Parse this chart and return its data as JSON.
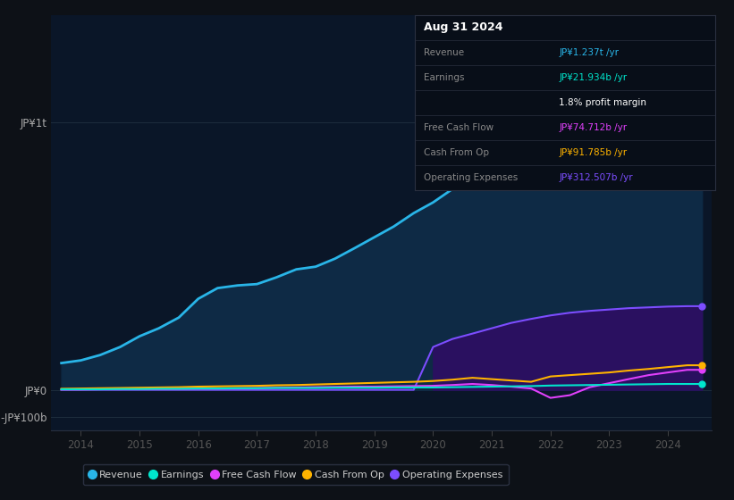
{
  "background_color": "#0d1117",
  "plot_bg_color": "#0a1628",
  "years": [
    2013.67,
    2014.0,
    2014.33,
    2014.67,
    2015.0,
    2015.33,
    2015.67,
    2016.0,
    2016.33,
    2016.67,
    2017.0,
    2017.33,
    2017.67,
    2018.0,
    2018.33,
    2018.67,
    2019.0,
    2019.33,
    2019.67,
    2020.0,
    2020.33,
    2020.67,
    2021.0,
    2021.33,
    2021.67,
    2022.0,
    2022.33,
    2022.67,
    2023.0,
    2023.33,
    2023.67,
    2024.0,
    2024.33,
    2024.58
  ],
  "revenue": [
    100,
    110,
    130,
    160,
    200,
    230,
    270,
    340,
    380,
    390,
    395,
    420,
    450,
    460,
    490,
    530,
    570,
    610,
    660,
    700,
    750,
    800,
    850,
    900,
    960,
    1010,
    1060,
    1100,
    1140,
    1170,
    1195,
    1220,
    1237,
    1237
  ],
  "earnings": [
    2,
    2,
    2,
    3,
    3,
    4,
    4,
    5,
    5,
    6,
    6,
    7,
    7,
    7,
    8,
    8,
    8,
    9,
    9,
    9,
    10,
    11,
    12,
    13,
    14,
    16,
    17,
    18,
    19,
    20,
    21,
    22,
    21.934,
    21.934
  ],
  "free_cash_flow": [
    1,
    1,
    2,
    2,
    3,
    3,
    4,
    5,
    5,
    6,
    7,
    8,
    9,
    10,
    11,
    12,
    12,
    13,
    14,
    15,
    18,
    22,
    18,
    12,
    5,
    -30,
    -20,
    10,
    25,
    40,
    55,
    65,
    74.712,
    74.712
  ],
  "cash_from_op": [
    4,
    5,
    6,
    7,
    8,
    9,
    10,
    12,
    13,
    14,
    15,
    17,
    18,
    20,
    22,
    24,
    26,
    28,
    30,
    33,
    38,
    45,
    40,
    35,
    30,
    50,
    55,
    60,
    65,
    72,
    78,
    85,
    91.785,
    91.785
  ],
  "operating_expenses": [
    0,
    0,
    0,
    0,
    0,
    0,
    0,
    0,
    0,
    0,
    0,
    0,
    0,
    0,
    0,
    0,
    0,
    0,
    0,
    160,
    190,
    210,
    230,
    250,
    265,
    278,
    288,
    295,
    300,
    305,
    308,
    311,
    312.507,
    312.507
  ],
  "revenue_color": "#29b5e8",
  "earnings_color": "#00e5cc",
  "free_cash_flow_color": "#e040fb",
  "cash_from_op_color": "#ffb300",
  "operating_expenses_color": "#7c4dff",
  "revenue_fill_color": "#0e2a45",
  "operating_expenses_fill_color": "#2a1060",
  "ylim_min": -150,
  "ylim_max": 1400,
  "xlim_min": 2013.5,
  "xlim_max": 2024.75,
  "ytick_labels": [
    "JP¥1t",
    "JP¥0",
    "-JP¥100b"
  ],
  "ytick_values": [
    1000,
    0,
    -100
  ],
  "xtick_labels": [
    "2014",
    "2015",
    "2016",
    "2017",
    "2018",
    "2019",
    "2020",
    "2021",
    "2022",
    "2023",
    "2024"
  ],
  "xtick_values": [
    2014,
    2015,
    2016,
    2017,
    2018,
    2019,
    2020,
    2021,
    2022,
    2023,
    2024
  ],
  "legend_labels": [
    "Revenue",
    "Earnings",
    "Free Cash Flow",
    "Cash From Op",
    "Operating Expenses"
  ],
  "legend_colors": [
    "#29b5e8",
    "#00e5cc",
    "#e040fb",
    "#ffb300",
    "#7c4dff"
  ],
  "info_box": {
    "title": "Aug 31 2024",
    "rows": [
      {
        "label": "Revenue",
        "value": "JP¥1.237t /yr",
        "value_color": "#29b5e8",
        "label_color": "#888888"
      },
      {
        "label": "Earnings",
        "value": "JP¥21.934b /yr",
        "value_color": "#00e5cc",
        "label_color": "#888888"
      },
      {
        "label": "",
        "value": "1.8% profit margin",
        "value_color": "#ffffff",
        "label_color": "#888888"
      },
      {
        "label": "Free Cash Flow",
        "value": "JP¥74.712b /yr",
        "value_color": "#e040fb",
        "label_color": "#888888"
      },
      {
        "label": "Cash From Op",
        "value": "JP¥91.785b /yr",
        "value_color": "#ffb300",
        "label_color": "#888888"
      },
      {
        "label": "Operating Expenses",
        "value": "JP¥312.507b /yr",
        "value_color": "#7c4dff",
        "label_color": "#888888"
      }
    ],
    "bg_color": "#080e18",
    "border_color": "#2a3040",
    "title_color": "#ffffff"
  }
}
